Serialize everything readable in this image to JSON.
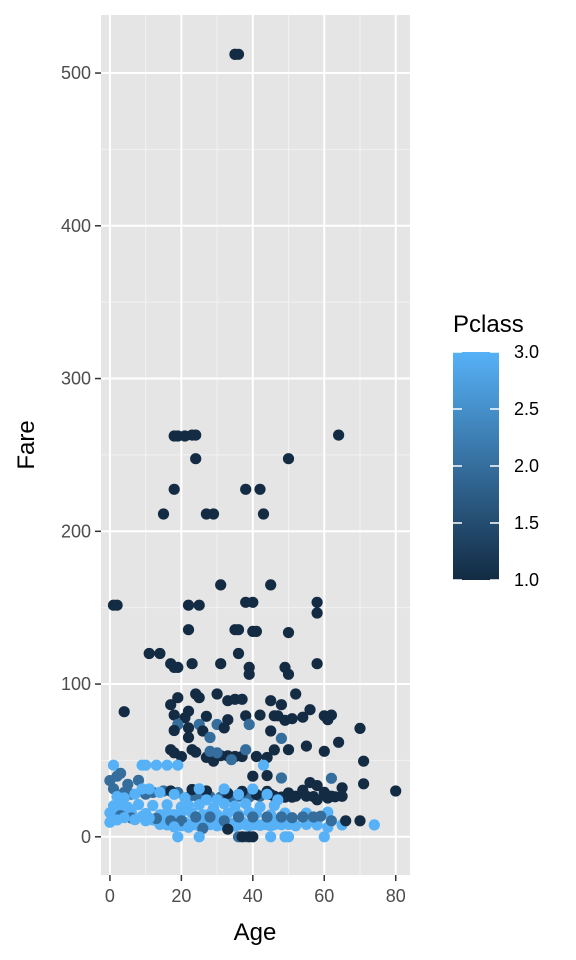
{
  "chart_data": {
    "type": "scatter",
    "xlabel": "Age",
    "ylabel": "Fare",
    "xlim": [
      -2.5,
      84
    ],
    "ylim": [
      -25,
      538
    ],
    "x_ticks": [
      0,
      20,
      40,
      60,
      80
    ],
    "y_ticks": [
      0,
      100,
      200,
      300,
      400,
      500
    ],
    "x_tick_labels": [
      "0",
      "20",
      "40",
      "60",
      "80"
    ],
    "y_tick_labels": [
      "0",
      "100",
      "200",
      "300",
      "400",
      "500"
    ],
    "grid": true,
    "panel_background": "#e5e5e5",
    "color_scale": {
      "title": "Pclass",
      "variable": "Pclass",
      "low": 1.0,
      "high": 3.0,
      "low_color": "#132b43",
      "high_color": "#56b1f7",
      "breaks": [
        1.0,
        1.5,
        2.0,
        2.5,
        3.0
      ],
      "break_labels": [
        "1.0",
        "1.5",
        "2.0",
        "2.5",
        "3.0"
      ],
      "legend_position": "right"
    },
    "points": [
      [
        35,
        512.3,
        1
      ],
      [
        36,
        512.3,
        1
      ],
      [
        35,
        512.3,
        1
      ],
      [
        18,
        262.4,
        1
      ],
      [
        19,
        262.4,
        1
      ],
      [
        21,
        262.4,
        1
      ],
      [
        23,
        263,
        1
      ],
      [
        24,
        263,
        1
      ],
      [
        64,
        263,
        1
      ],
      [
        24,
        247.5,
        1
      ],
      [
        50,
        247.5,
        1
      ],
      [
        18,
        227.5,
        1
      ],
      [
        38,
        227.5,
        1
      ],
      [
        42,
        227.5,
        1
      ],
      [
        27,
        211.3,
        1
      ],
      [
        29,
        211.3,
        1
      ],
      [
        43,
        211.3,
        1
      ],
      [
        15,
        211.3,
        1
      ],
      [
        31,
        164.9,
        1
      ],
      [
        45,
        164.9,
        1
      ],
      [
        1,
        151.6,
        1
      ],
      [
        2,
        151.6,
        1
      ],
      [
        22,
        151.6,
        1
      ],
      [
        25,
        151.6,
        1
      ],
      [
        38,
        153.5,
        1
      ],
      [
        40,
        153.5,
        1
      ],
      [
        58,
        153.5,
        1
      ],
      [
        58,
        146.5,
        1
      ],
      [
        22,
        135.6,
        1
      ],
      [
        35,
        135.6,
        1
      ],
      [
        36,
        135.6,
        1
      ],
      [
        40,
        134.5,
        1
      ],
      [
        41,
        134.5,
        1
      ],
      [
        50,
        133.7,
        1
      ],
      [
        11,
        120,
        1
      ],
      [
        14,
        120,
        1
      ],
      [
        36,
        120,
        1
      ],
      [
        18,
        110.9,
        1
      ],
      [
        17,
        113.3,
        1
      ],
      [
        19,
        110.9,
        1
      ],
      [
        23,
        113.3,
        1
      ],
      [
        31,
        113.3,
        1
      ],
      [
        39,
        110.9,
        1
      ],
      [
        49,
        110.9,
        1
      ],
      [
        50,
        106.4,
        1
      ],
      [
        58,
        113.3,
        1
      ],
      [
        39,
        106.4,
        1
      ],
      [
        24,
        93.5,
        1
      ],
      [
        30,
        93.5,
        1
      ],
      [
        33,
        89.1,
        1
      ],
      [
        35,
        90,
        1
      ],
      [
        37,
        90,
        1
      ],
      [
        19,
        91.1,
        1
      ],
      [
        25,
        91.1,
        1
      ],
      [
        45,
        89.1,
        1
      ],
      [
        48,
        86.5,
        1
      ],
      [
        52,
        93.5,
        1
      ],
      [
        56,
        83.2,
        1
      ],
      [
        46,
        79.2,
        1
      ],
      [
        54,
        78.3,
        1
      ],
      [
        17,
        86.5,
        1
      ],
      [
        4,
        81.9,
        1
      ],
      [
        18,
        79.7,
        1
      ],
      [
        21,
        77.9,
        1
      ],
      [
        22,
        82.2,
        1
      ],
      [
        27,
        78.9,
        1
      ],
      [
        33,
        76.7,
        1
      ],
      [
        38,
        79.2,
        1
      ],
      [
        42,
        79.7,
        1
      ],
      [
        47,
        79.2,
        1
      ],
      [
        49,
        76.3,
        1
      ],
      [
        51,
        77.3,
        1
      ],
      [
        60,
        79.2,
        1
      ],
      [
        61,
        76.7,
        1
      ],
      [
        62,
        79.7,
        1
      ],
      [
        70,
        71,
        1
      ],
      [
        19,
        73.5,
        2
      ],
      [
        25,
        73.5,
        2
      ],
      [
        30,
        73.5,
        2
      ],
      [
        39,
        73.5,
        2
      ],
      [
        18,
        69.6,
        1
      ],
      [
        22,
        71.3,
        1
      ],
      [
        26,
        69.3,
        1
      ],
      [
        32,
        71.3,
        1
      ],
      [
        45,
        69.3,
        1
      ],
      [
        28,
        65,
        2
      ],
      [
        64,
        61.9,
        1
      ],
      [
        48,
        64.4,
        2
      ],
      [
        50,
        57,
        1
      ],
      [
        55,
        59.4,
        1
      ],
      [
        60,
        56,
        1
      ],
      [
        22,
        65,
        1
      ],
      [
        23,
        57,
        1
      ],
      [
        17,
        57,
        1
      ],
      [
        18,
        55,
        1
      ],
      [
        20,
        52.5,
        1
      ],
      [
        24,
        55.4,
        1
      ],
      [
        27,
        52,
        1
      ],
      [
        31,
        53.1,
        1
      ],
      [
        35,
        52.6,
        1
      ],
      [
        37,
        52.6,
        1
      ],
      [
        38,
        57,
        2
      ],
      [
        41,
        52.6,
        1
      ],
      [
        44,
        51.9,
        1
      ],
      [
        46,
        56.9,
        1
      ],
      [
        29,
        49.5,
        1
      ],
      [
        33,
        53,
        1
      ],
      [
        71,
        49.5,
        1
      ],
      [
        28,
        55.9,
        2
      ],
      [
        30,
        55,
        2
      ],
      [
        34,
        50.5,
        2
      ],
      [
        13,
        46.9,
        3
      ],
      [
        16,
        46.9,
        3
      ],
      [
        19,
        46.9,
        3
      ],
      [
        9,
        46.9,
        3
      ],
      [
        10,
        46.9,
        3
      ],
      [
        1,
        46.9,
        3
      ],
      [
        43,
        46.9,
        3
      ],
      [
        48,
        38.5,
        2
      ],
      [
        40,
        39.7,
        1
      ],
      [
        44,
        40.1,
        1
      ],
      [
        56,
        35.5,
        1
      ],
      [
        58,
        33.5,
        1
      ],
      [
        62,
        38.3,
        2
      ],
      [
        65,
        32.1,
        1
      ],
      [
        2,
        39.7,
        2
      ],
      [
        3,
        41.6,
        2
      ],
      [
        0,
        36.8,
        2
      ],
      [
        5,
        34.4,
        2
      ],
      [
        8,
        37,
        2
      ],
      [
        1,
        31.4,
        2
      ],
      [
        4,
        29,
        2
      ],
      [
        6,
        27.9,
        2
      ],
      [
        10,
        27.9,
        2
      ],
      [
        12,
        29.1,
        2
      ],
      [
        15,
        30,
        2
      ],
      [
        19,
        29,
        2
      ],
      [
        22,
        26,
        2
      ],
      [
        24,
        26.9,
        2
      ],
      [
        26,
        26,
        2
      ],
      [
        28,
        26.3,
        2
      ],
      [
        31,
        26,
        2
      ],
      [
        33,
        26.3,
        2
      ],
      [
        34,
        26,
        2
      ],
      [
        36,
        26.5,
        2
      ],
      [
        39,
        26,
        2
      ],
      [
        42,
        26.6,
        2
      ],
      [
        44,
        29.7,
        1
      ],
      [
        46,
        26.6,
        1
      ],
      [
        48,
        26,
        1
      ],
      [
        50,
        28.7,
        1
      ],
      [
        52,
        26.6,
        1
      ],
      [
        54,
        30.5,
        1
      ],
      [
        57,
        26.3,
        1
      ],
      [
        60,
        29.1,
        1
      ],
      [
        63,
        26.2,
        1
      ],
      [
        65,
        26.5,
        1
      ],
      [
        71,
        34.7,
        1
      ],
      [
        80,
        30,
        1
      ],
      [
        17,
        30,
        1
      ],
      [
        23,
        31,
        1
      ],
      [
        27,
        30,
        1
      ],
      [
        33,
        28.5,
        1
      ],
      [
        37,
        29.7,
        1
      ],
      [
        41,
        27.7,
        1
      ],
      [
        45,
        27.7,
        1
      ],
      [
        49,
        25.9,
        1
      ],
      [
        51,
        25.9,
        1
      ],
      [
        55,
        26.6,
        1
      ],
      [
        58,
        24.2,
        1
      ],
      [
        61,
        25.4,
        1
      ],
      [
        62,
        26.6,
        1
      ],
      [
        2,
        26.3,
        3
      ],
      [
        4,
        25.5,
        3
      ],
      [
        7,
        27.9,
        3
      ],
      [
        9,
        31.3,
        3
      ],
      [
        11,
        31.3,
        3
      ],
      [
        14,
        29.1,
        3
      ],
      [
        18,
        27.8,
        3
      ],
      [
        21,
        25.5,
        3
      ],
      [
        25,
        31.4,
        3
      ],
      [
        27,
        24.2,
        3
      ],
      [
        30,
        24.2,
        3
      ],
      [
        32,
        31.3,
        3
      ],
      [
        36,
        27.7,
        3
      ],
      [
        40,
        31.3,
        3
      ],
      [
        44,
        27.8,
        3
      ],
      [
        47,
        24.2,
        3
      ],
      [
        1,
        20.3,
        3
      ],
      [
        3,
        21,
        3
      ],
      [
        5,
        19.3,
        3
      ],
      [
        8,
        21.1,
        3
      ],
      [
        12,
        20.5,
        3
      ],
      [
        16,
        21,
        3
      ],
      [
        20,
        19.5,
        3
      ],
      [
        22,
        20.5,
        3
      ],
      [
        25,
        21,
        3
      ],
      [
        29,
        18.8,
        3
      ],
      [
        32,
        21.7,
        3
      ],
      [
        35,
        20.2,
        3
      ],
      [
        38,
        21.7,
        3
      ],
      [
        42,
        19.5,
        3
      ],
      [
        46,
        20.5,
        3
      ],
      [
        0,
        15.7,
        3
      ],
      [
        2,
        16.7,
        3
      ],
      [
        4,
        15.5,
        3
      ],
      [
        6,
        16.1,
        3
      ],
      [
        10,
        15.2,
        3
      ],
      [
        14,
        14.5,
        3
      ],
      [
        16,
        15.9,
        3
      ],
      [
        18,
        14.5,
        3
      ],
      [
        20,
        15.8,
        3
      ],
      [
        23,
        15.5,
        3
      ],
      [
        26,
        14.5,
        3
      ],
      [
        28,
        15.1,
        3
      ],
      [
        30,
        14.5,
        3
      ],
      [
        33,
        15.5,
        3
      ],
      [
        36,
        14.5,
        3
      ],
      [
        39,
        16.1,
        3
      ],
      [
        41,
        15.2,
        3
      ],
      [
        45,
        14.5,
        3
      ],
      [
        49,
        15.5,
        3
      ],
      [
        55,
        15.5,
        3
      ],
      [
        61,
        16.1,
        3
      ],
      [
        10,
        10.5,
        3
      ],
      [
        12,
        11.1,
        3
      ],
      [
        14,
        8.1,
        3
      ],
      [
        15,
        9.2,
        3
      ],
      [
        16,
        7.8,
        3
      ],
      [
        17,
        10.5,
        3
      ],
      [
        18,
        7.9,
        3
      ],
      [
        19,
        8.7,
        3
      ],
      [
        20,
        7.2,
        3
      ],
      [
        21,
        9.5,
        3
      ],
      [
        22,
        7.8,
        3
      ],
      [
        23,
        8.1,
        3
      ],
      [
        24,
        7.9,
        3
      ],
      [
        25,
        7.2,
        3
      ],
      [
        26,
        7.9,
        3
      ],
      [
        27,
        8.7,
        3
      ],
      [
        28,
        7.9,
        3
      ],
      [
        29,
        9.5,
        3
      ],
      [
        30,
        7.2,
        3
      ],
      [
        31,
        7.8,
        3
      ],
      [
        32,
        8.1,
        3
      ],
      [
        33,
        7.9,
        3
      ],
      [
        34,
        8.7,
        3
      ],
      [
        35,
        7.1,
        3
      ],
      [
        36,
        7.8,
        3
      ],
      [
        37,
        9.8,
        3
      ],
      [
        38,
        7.9,
        3
      ],
      [
        39,
        7.2,
        3
      ],
      [
        40,
        7.8,
        3
      ],
      [
        41,
        8.1,
        3
      ],
      [
        42,
        7.5,
        3
      ],
      [
        43,
        8.1,
        3
      ],
      [
        44,
        7.9,
        3
      ],
      [
        45,
        7.2,
        3
      ],
      [
        46,
        7.9,
        3
      ],
      [
        47,
        9.5,
        3
      ],
      [
        48,
        7.9,
        3
      ],
      [
        50,
        8.1,
        3
      ],
      [
        52,
        7.2,
        3
      ],
      [
        55,
        8.1,
        3
      ],
      [
        58,
        7.8,
        3
      ],
      [
        61,
        6.2,
        3
      ],
      [
        65,
        7.8,
        3
      ],
      [
        74,
        7.8,
        3
      ],
      [
        70,
        10.5,
        1
      ],
      [
        66,
        10.5,
        1
      ],
      [
        59,
        13.5,
        2
      ],
      [
        62,
        10.5,
        2
      ],
      [
        57,
        13,
        2
      ],
      [
        54,
        13,
        2
      ],
      [
        51,
        12.5,
        2
      ],
      [
        48,
        13,
        2
      ],
      [
        44,
        13,
        2
      ],
      [
        40,
        13,
        2
      ],
      [
        36,
        13,
        2
      ],
      [
        32,
        10.5,
        2
      ],
      [
        28,
        13,
        2
      ],
      [
        24,
        13,
        2
      ],
      [
        20,
        10.5,
        2
      ],
      [
        17,
        10.5,
        2
      ],
      [
        13,
        12,
        2
      ],
      [
        6,
        12.3,
        2
      ],
      [
        3,
        13.8,
        2
      ],
      [
        0,
        9.5,
        3
      ],
      [
        2,
        11.1,
        3
      ],
      [
        4,
        12.5,
        3
      ],
      [
        7,
        11.2,
        3
      ],
      [
        9,
        13.4,
        3
      ],
      [
        11,
        12.3,
        3
      ],
      [
        18,
        6.5,
        3
      ],
      [
        22,
        6.2,
        3
      ],
      [
        26,
        5.5,
        2
      ],
      [
        33,
        5,
        1
      ],
      [
        38,
        0,
        2
      ],
      [
        39,
        0,
        1
      ],
      [
        40,
        0,
        1
      ],
      [
        36,
        0,
        2
      ],
      [
        37,
        0,
        1
      ],
      [
        19,
        0,
        3
      ],
      [
        25,
        0,
        3
      ],
      [
        49,
        0,
        3
      ],
      [
        50,
        0,
        3
      ],
      [
        60,
        0,
        3
      ],
      [
        45,
        0,
        3
      ]
    ]
  }
}
